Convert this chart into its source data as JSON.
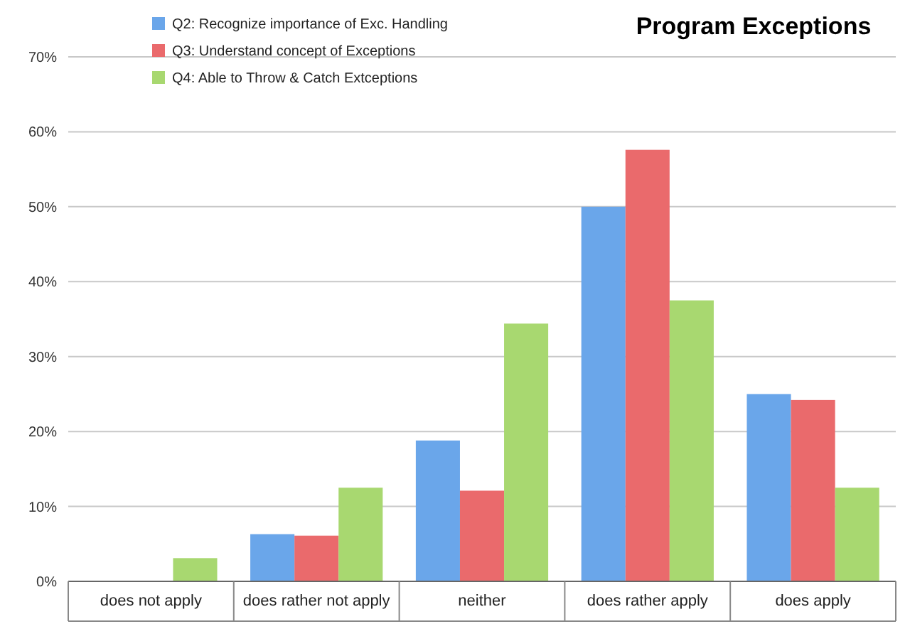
{
  "chart_data": {
    "type": "bar",
    "title": "Program Exceptions",
    "categories": [
      "does not apply",
      "does rather not apply",
      "neither",
      "does rather apply",
      "does apply"
    ],
    "series": [
      {
        "name": "Q2: Recognize importance of Exc. Handling",
        "color": "#6aa6ea",
        "values": [
          0,
          6.3,
          18.8,
          50,
          25
        ]
      },
      {
        "name": "Q3: Understand concept of Exceptions",
        "color": "#ea6a6c",
        "values": [
          0,
          6.1,
          12.1,
          57.6,
          24.2
        ]
      },
      {
        "name": "Q4: Able to Throw & Catch Extceptions",
        "color": "#a8d870",
        "values": [
          3.1,
          12.5,
          34.4,
          37.5,
          12.5
        ]
      }
    ],
    "ylim": [
      0,
      70
    ],
    "yticks": [
      {
        "value": 0,
        "label": "0%"
      },
      {
        "value": 10,
        "label": "10%"
      },
      {
        "value": 20,
        "label": "20%"
      },
      {
        "value": 30,
        "label": "30%"
      },
      {
        "value": 40,
        "label": "40%"
      },
      {
        "value": 50,
        "label": "50%"
      },
      {
        "value": 60,
        "label": "60%"
      },
      {
        "value": 70,
        "label": "70%"
      }
    ],
    "grid": "y",
    "legend": "top left"
  }
}
